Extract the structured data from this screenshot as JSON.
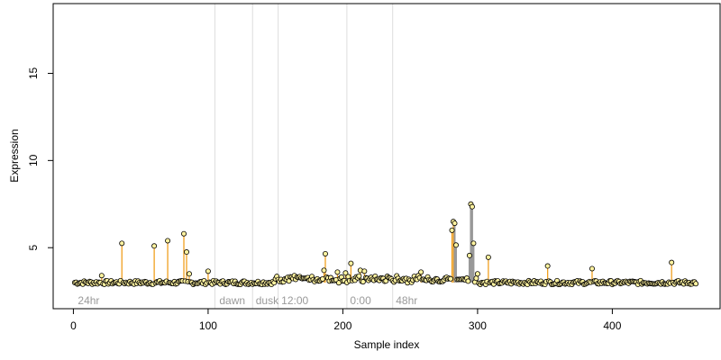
{
  "chart_data": {
    "type": "scatter",
    "title": "",
    "xlabel": "Sample index",
    "ylabel": "Expression",
    "xlim": [
      -15,
      480
    ],
    "ylim": [
      1.5,
      19
    ],
    "x_ticks": [
      0,
      100,
      200,
      300,
      400
    ],
    "y_ticks": [
      5,
      10,
      15
    ],
    "grid": false,
    "baseline": 3.0,
    "n_points": 462,
    "colors": {
      "point_fill": "#fff3a0",
      "point_stroke": "#000000",
      "spike": "#f0a020",
      "spike_gray": "#999999",
      "vline": "#dddddd",
      "annotation": "#9a9a9a"
    },
    "vertical_lines": [
      105,
      133,
      152,
      203,
      237
    ],
    "annotations": [
      {
        "x": 2,
        "label": "24hr"
      },
      {
        "x": 107,
        "label": "dawn"
      },
      {
        "x": 134,
        "label": "dusk"
      },
      {
        "x": 153,
        "label": "12:00"
      },
      {
        "x": 204,
        "label": "0:00"
      },
      {
        "x": 238,
        "label": "48hr"
      }
    ],
    "outliers": [
      {
        "x": 21,
        "y": 3.4,
        "color": "orange"
      },
      {
        "x": 36,
        "y": 5.25,
        "color": "orange"
      },
      {
        "x": 60,
        "y": 5.1,
        "color": "orange"
      },
      {
        "x": 70,
        "y": 5.4,
        "color": "orange"
      },
      {
        "x": 82,
        "y": 5.8,
        "color": "orange"
      },
      {
        "x": 84,
        "y": 4.75,
        "color": "orange"
      },
      {
        "x": 86,
        "y": 3.5,
        "color": "orange"
      },
      {
        "x": 100,
        "y": 3.65,
        "color": "orange"
      },
      {
        "x": 186,
        "y": 3.7,
        "color": "orange"
      },
      {
        "x": 187,
        "y": 4.65,
        "color": "orange"
      },
      {
        "x": 196,
        "y": 3.6,
        "color": "orange"
      },
      {
        "x": 202,
        "y": 3.55,
        "color": "orange"
      },
      {
        "x": 206,
        "y": 4.1,
        "color": "orange"
      },
      {
        "x": 213,
        "y": 3.7,
        "color": "orange"
      },
      {
        "x": 216,
        "y": 3.65,
        "color": "orange"
      },
      {
        "x": 258,
        "y": 3.6,
        "color": "orange"
      },
      {
        "x": 281,
        "y": 6.0,
        "color": "orange"
      },
      {
        "x": 282,
        "y": 6.5,
        "color": "orange"
      },
      {
        "x": 283,
        "y": 6.4,
        "color": "gray"
      },
      {
        "x": 284,
        "y": 5.15,
        "color": "gray"
      },
      {
        "x": 294,
        "y": 4.55,
        "color": "gray"
      },
      {
        "x": 295,
        "y": 7.5,
        "color": "gray"
      },
      {
        "x": 296,
        "y": 7.35,
        "color": "gray"
      },
      {
        "x": 297,
        "y": 5.25,
        "color": "gray"
      },
      {
        "x": 300,
        "y": 3.5,
        "color": "gray"
      },
      {
        "x": 308,
        "y": 4.45,
        "color": "orange"
      },
      {
        "x": 352,
        "y": 3.95,
        "color": "orange"
      },
      {
        "x": 385,
        "y": 3.8,
        "color": "orange"
      },
      {
        "x": 444,
        "y": 4.15,
        "color": "orange"
      }
    ]
  }
}
